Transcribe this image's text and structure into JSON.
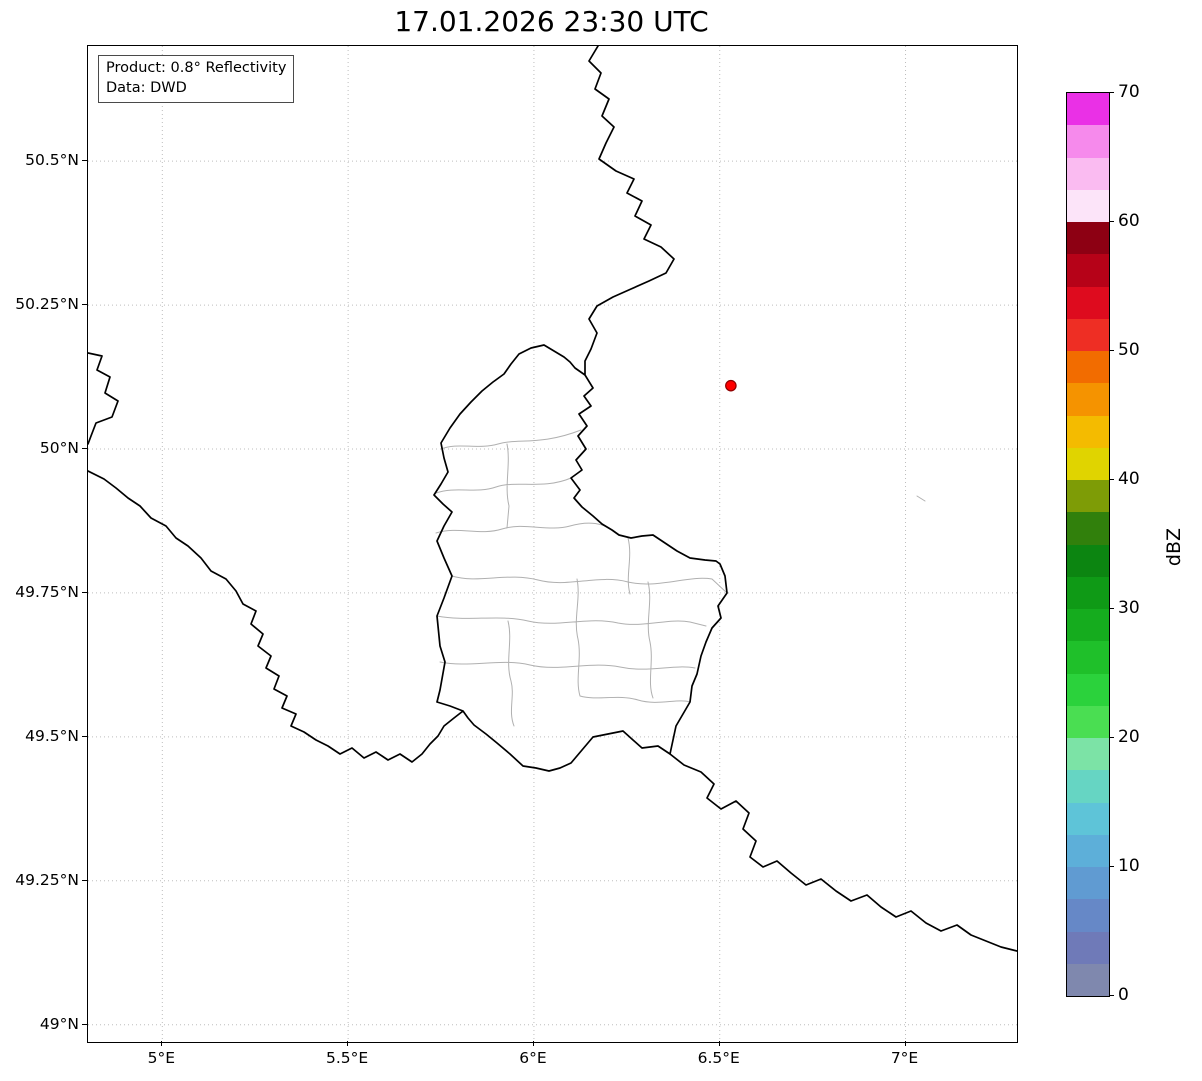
{
  "title": "17.01.2026 23:30 UTC",
  "info_box": {
    "product": "Product: 0.8° Reflectivity",
    "source": "Data: DWD"
  },
  "map": {
    "x_range": [
      4.8,
      7.3
    ],
    "y_range": [
      48.97,
      50.7
    ],
    "x_ticks": [
      {
        "value": 5.0,
        "label": "5°E"
      },
      {
        "value": 5.5,
        "label": "5.5°E"
      },
      {
        "value": 6.0,
        "label": "6°E"
      },
      {
        "value": 6.5,
        "label": "6.5°E"
      },
      {
        "value": 7.0,
        "label": "7°E"
      }
    ],
    "y_ticks": [
      {
        "value": 50.5,
        "label": "50.5°N"
      },
      {
        "value": 50.25,
        "label": "50.25°N"
      },
      {
        "value": 50.0,
        "label": "50°N"
      },
      {
        "value": 49.75,
        "label": "49.75°N"
      },
      {
        "value": 49.5,
        "label": "49.5°N"
      },
      {
        "value": 49.25,
        "label": "49.25°N"
      },
      {
        "value": 49.0,
        "label": "49°N"
      }
    ],
    "grid_color": "#bdbdbd",
    "border_color": "#000000",
    "district_color": "#b0b0b0",
    "marker": {
      "name": "radar-site",
      "lon": 6.53,
      "lat": 50.11,
      "fill": "#ff0000",
      "edge": "#8b0000"
    }
  },
  "colorbar": {
    "label": "dBZ",
    "range": [
      0,
      70
    ],
    "tick_values": [
      0,
      10,
      20,
      30,
      40,
      50,
      60,
      70
    ],
    "colors_bottom_to_top": [
      "#7f88ae",
      "#6f7ab8",
      "#6688c7",
      "#609bd2",
      "#5dafd9",
      "#5ec4d8",
      "#66d5c3",
      "#7ce3a6",
      "#4ade52",
      "#2bd23c",
      "#1fc02a",
      "#15ac1e",
      "#0f9a16",
      "#0c8511",
      "#31800c",
      "#7e9c06",
      "#e0d400",
      "#f4bb00",
      "#f59300",
      "#f26c00",
      "#ee2e24",
      "#de0b1e",
      "#b60218",
      "#8d0013",
      "#fce4f9",
      "#fabbf1",
      "#f68aec",
      "#ea30e6"
    ]
  }
}
